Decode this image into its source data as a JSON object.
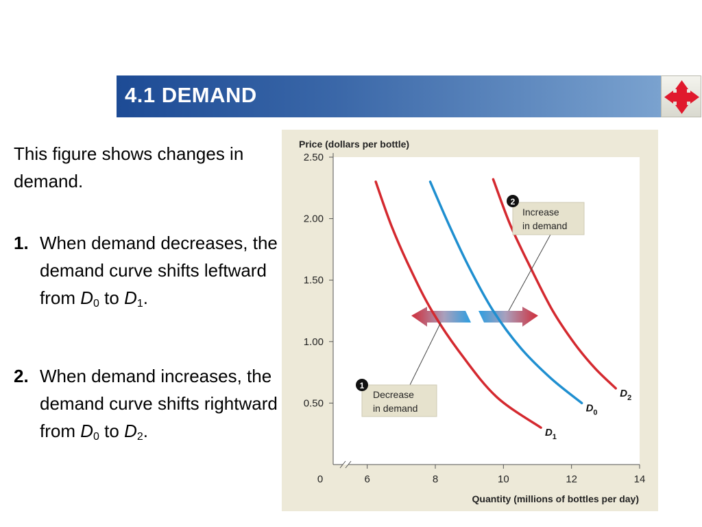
{
  "header": {
    "title": "4.1 DEMAND"
  },
  "nav": {
    "icon": "four-way-arrow-icon",
    "color": "#e0192d"
  },
  "text": {
    "intro": "This figure shows changes in demand.",
    "points": [
      {
        "num": "1.",
        "text_a": "When demand decreases, the demand curve shifts leftward from",
        "from_sym": "D",
        "from_sub": "0",
        "to_word": "to",
        "to_sym": "D",
        "to_sub": "1",
        "end": "."
      },
      {
        "num": "2.",
        "text_a": "When demand increases, the demand curve shifts rightward from",
        "from_sym": "D",
        "from_sub": "0",
        "to_word": "to",
        "to_sym": "D",
        "to_sub": "2",
        "end": "."
      }
    ]
  },
  "chart_data": {
    "type": "line",
    "ylabel": "Price (dollars per bottle)",
    "xlabel": "Quantity (millions of bottles per day)",
    "xlim": [
      5,
      14
    ],
    "ylim": [
      0,
      2.5
    ],
    "x_ticks": [
      6,
      8,
      10,
      12,
      14
    ],
    "x_tick_labels": [
      "6",
      "8",
      "10",
      "12",
      "14"
    ],
    "y_ticks": [
      0.5,
      1.0,
      1.5,
      2.0,
      2.5
    ],
    "y_tick_labels": [
      "0.50",
      "1.00",
      "1.50",
      "2.00",
      "2.50"
    ],
    "origin_label": "0",
    "axis_break": true,
    "grid": false,
    "series": [
      {
        "sym": "D",
        "sub": "0",
        "color": "#1f8fd0",
        "points": [
          [
            7.85,
            2.3
          ],
          [
            8.4,
            1.95
          ],
          [
            9.0,
            1.6
          ],
          [
            9.7,
            1.25
          ],
          [
            10.5,
            0.95
          ],
          [
            11.4,
            0.7
          ],
          [
            12.3,
            0.5
          ]
        ]
      },
      {
        "sym": "D",
        "sub": "1",
        "color": "#d4292f",
        "points": [
          [
            6.25,
            2.3
          ],
          [
            6.7,
            1.95
          ],
          [
            7.25,
            1.6
          ],
          [
            7.9,
            1.25
          ],
          [
            8.75,
            0.9
          ],
          [
            9.8,
            0.55
          ],
          [
            11.1,
            0.3
          ]
        ]
      },
      {
        "sym": "D",
        "sub": "2",
        "color": "#d4292f",
        "points": [
          [
            9.7,
            2.32
          ],
          [
            10.2,
            1.95
          ],
          [
            10.8,
            1.6
          ],
          [
            11.45,
            1.25
          ],
          [
            12.1,
            0.98
          ],
          [
            12.7,
            0.78
          ],
          [
            13.3,
            0.62
          ]
        ]
      }
    ],
    "annotations": [
      {
        "badge": "1",
        "lines": [
          "Decrease",
          "in demand"
        ],
        "arrow_dir": "left"
      },
      {
        "badge": "2",
        "lines": [
          "Increase",
          "in demand"
        ],
        "arrow_dir": "right"
      }
    ]
  }
}
